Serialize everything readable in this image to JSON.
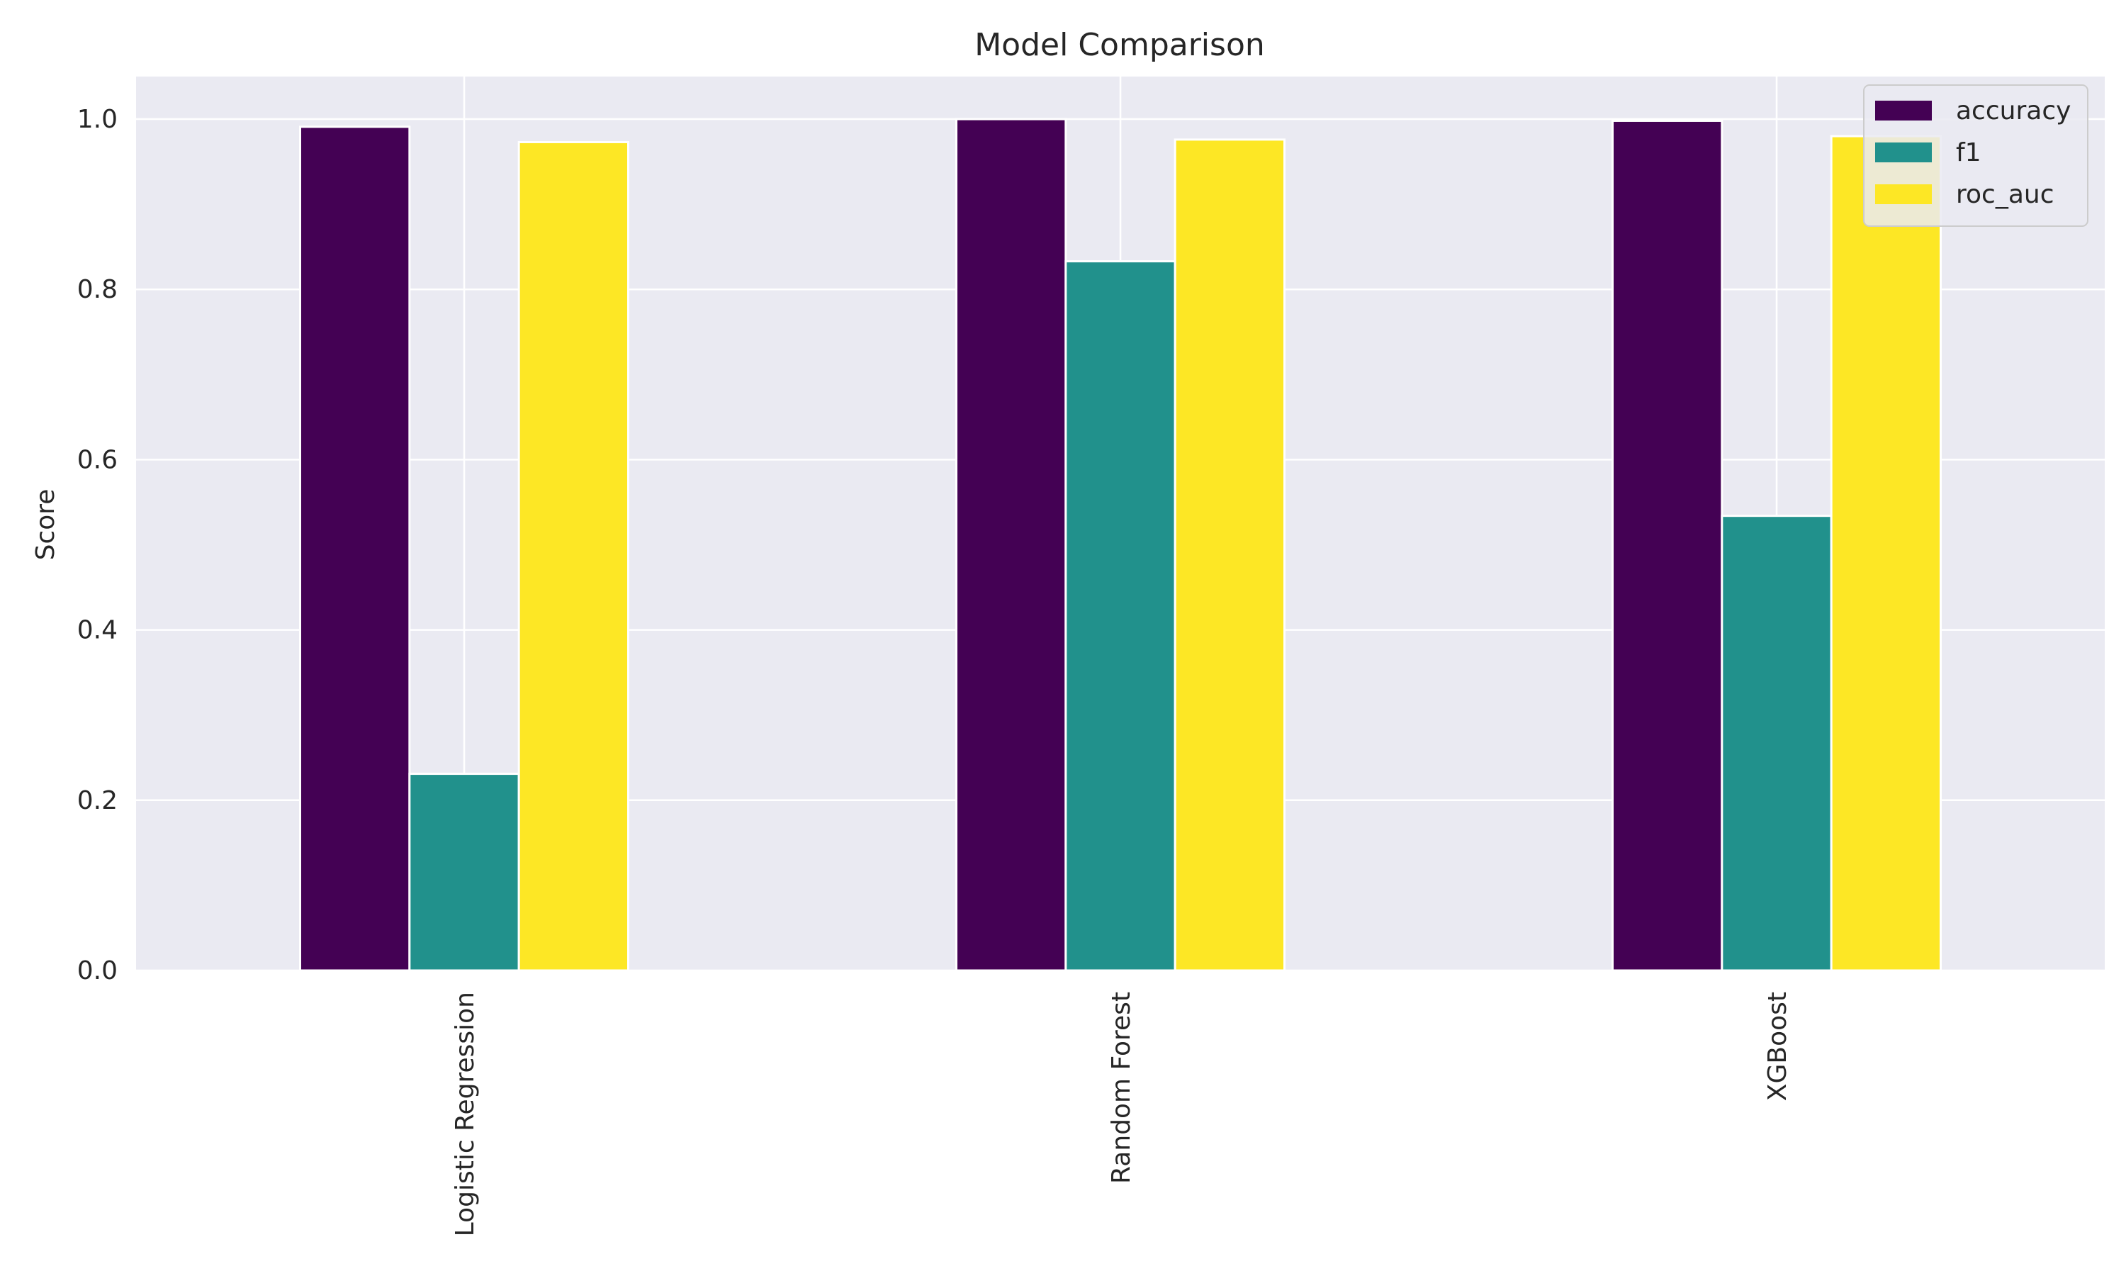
{
  "chart_data": {
    "type": "bar",
    "title": "Model Comparison",
    "xlabel": "",
    "ylabel": "Score",
    "ylim": [
      0,
      1.05
    ],
    "yticks": [
      0.0,
      0.2,
      0.4,
      0.6,
      0.8,
      1.0
    ],
    "ytick_labels": [
      "0.0",
      "0.2",
      "0.4",
      "0.6",
      "0.8",
      "1.0"
    ],
    "categories": [
      "Logistic Regression",
      "Random Forest",
      "XGBoost"
    ],
    "series": [
      {
        "name": "accuracy",
        "color": "#440154",
        "values": [
          0.991,
          1.0,
          0.998
        ]
      },
      {
        "name": "f1",
        "color": "#21918c",
        "values": [
          0.231,
          0.833,
          0.534
        ]
      },
      {
        "name": "roc_auc",
        "color": "#fde725",
        "values": [
          0.973,
          0.976,
          0.98
        ]
      }
    ],
    "grid": true,
    "legend_position": "top-right",
    "background": "#eaeaf2"
  }
}
